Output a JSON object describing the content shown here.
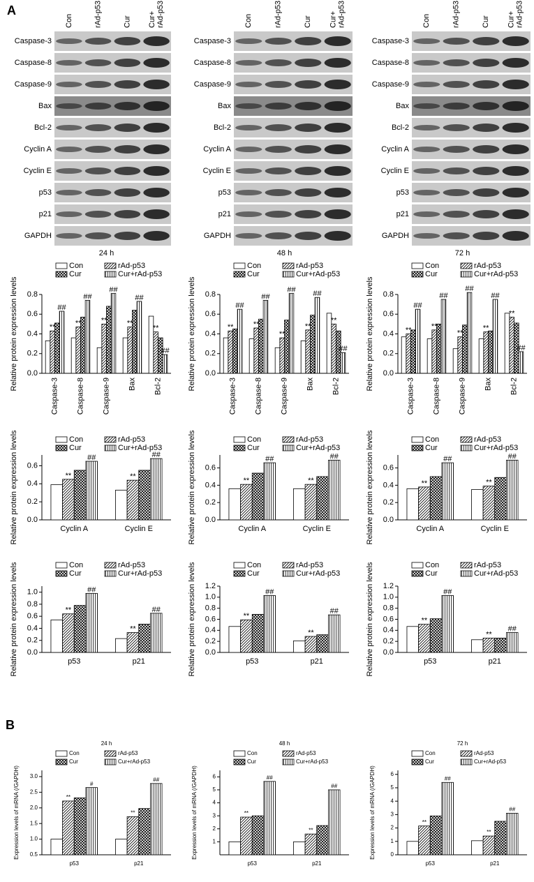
{
  "panel_labels": [
    "A",
    "B"
  ],
  "blots": [
    {
      "lanes": [
        [
          "Con"
        ],
        [
          "rAd-p53"
        ],
        [
          "Cur"
        ],
        [
          "Cur+",
          "rAd-p53"
        ]
      ],
      "proteins": [
        "Caspase-3",
        "Caspase-8",
        "Caspase-9",
        "Bax",
        "Bcl-2",
        "Cyclin A",
        "Cyclin E",
        "p53",
        "p21",
        "GAPDH"
      ]
    },
    {
      "lanes": [
        [
          "Con"
        ],
        [
          "rAd-p53"
        ],
        [
          "Cur"
        ],
        [
          "Cur+",
          "rAd-p53"
        ]
      ],
      "proteins": [
        "Caspase-3",
        "Caspase-8",
        "Caspase-9",
        "Bax",
        "Bcl-2",
        "Cyclin A",
        "Cyclin E",
        "p53",
        "p21",
        "GAPDH"
      ]
    },
    {
      "lanes": [
        [
          "Con"
        ],
        [
          "rAd-p53"
        ],
        [
          "Cur"
        ],
        [
          "Cur+",
          "rAd-p53"
        ]
      ],
      "proteins": [
        "Caspase-3",
        "Caspase-8",
        "Caspase-9",
        "Bax",
        "Bcl-2",
        "Cyclin A",
        "Cyclin E",
        "p53",
        "p21",
        "GAPDH"
      ]
    }
  ],
  "chart_data": [
    {
      "type": "bar",
      "title": "24 h",
      "y_label": "Relative protein expression levels",
      "categories": [
        "Caspase-3",
        "Caspase-8",
        "Caspase-9",
        "Bax",
        "Bcl-2"
      ],
      "ylim": [
        0,
        0.8
      ],
      "yticks": [
        {
          "value": 0,
          "label": "0.0"
        },
        0.2,
        0.4,
        0.6,
        0.8
      ],
      "series": [
        {
          "name": "Con",
          "pattern": "none",
          "values": [
            0.33,
            0.36,
            0.26,
            0.36,
            0.58
          ]
        },
        {
          "name": "rAd-p53",
          "pattern": "diagonal",
          "values": [
            0.43,
            0.47,
            0.5,
            0.47,
            0.42
          ],
          "annotations": [
            "**",
            "**",
            "**",
            "**",
            "**"
          ]
        },
        {
          "name": "Cur",
          "pattern": "cross",
          "values": [
            0.51,
            0.57,
            0.68,
            0.64,
            0.36
          ]
        },
        {
          "name": "Cur+rAd-p53",
          "pattern": "vertical",
          "values": [
            0.63,
            0.74,
            0.81,
            0.73,
            0.19
          ],
          "annotations": [
            "##",
            "##",
            "##",
            "##",
            "##"
          ]
        }
      ]
    },
    {
      "type": "bar",
      "title": "48 h",
      "y_label": "Relative protein expression levels",
      "categories": [
        "Caspase-3",
        "Caspase-8",
        "Caspase-9",
        "Bax",
        "Bcl-2"
      ],
      "ylim": [
        0,
        0.8
      ],
      "yticks": [
        {
          "value": 0,
          "label": "0.0"
        },
        0.2,
        0.4,
        0.6,
        0.8
      ],
      "series": [
        {
          "name": "Con",
          "pattern": "none",
          "values": [
            0.36,
            0.35,
            0.26,
            0.33,
            0.61
          ]
        },
        {
          "name": "rAd-p53",
          "pattern": "diagonal",
          "values": [
            0.43,
            0.46,
            0.36,
            0.44,
            0.5
          ],
          "annotations": [
            "**",
            "**",
            "**",
            "**",
            "**"
          ]
        },
        {
          "name": "Cur",
          "pattern": "cross",
          "values": [
            0.45,
            0.55,
            0.54,
            0.59,
            0.43
          ]
        },
        {
          "name": "Cur+rAd-p53",
          "pattern": "vertical",
          "values": [
            0.65,
            0.74,
            0.81,
            0.77,
            0.21
          ],
          "annotations": [
            "##",
            "##",
            "##",
            "##",
            "##"
          ]
        }
      ]
    },
    {
      "type": "bar",
      "title": "72 h",
      "y_label": "Relative protein expression levels",
      "categories": [
        "Caspase-3",
        "Caspase-8",
        "Caspase-9",
        "Bax",
        "Bcl-2"
      ],
      "ylim": [
        0,
        0.8
      ],
      "yticks": [
        {
          "value": 0,
          "label": "0.0"
        },
        0.2,
        0.4,
        0.6,
        0.8
      ],
      "series": [
        {
          "name": "Con",
          "pattern": "none",
          "values": [
            0.37,
            0.35,
            0.25,
            0.35,
            0.61
          ]
        },
        {
          "name": "rAd-p53",
          "pattern": "diagonal",
          "values": [
            0.4,
            0.44,
            0.37,
            0.42,
            0.57
          ],
          "annotations": [
            "**",
            "**",
            "**",
            "**",
            "**"
          ]
        },
        {
          "name": "Cur",
          "pattern": "cross",
          "values": [
            0.44,
            0.5,
            0.49,
            0.43,
            0.51
          ]
        },
        {
          "name": "Cur+rAd-p53",
          "pattern": "vertical",
          "values": [
            0.65,
            0.75,
            0.82,
            0.75,
            0.22
          ],
          "annotations": [
            "##",
            "##",
            "##",
            "##",
            "##"
          ]
        }
      ]
    },
    {
      "type": "bar",
      "y_label": "Relative protein expression levels",
      "categories": [
        "Cyclin A",
        "Cyclin E"
      ],
      "ylim": [
        0,
        0.72
      ],
      "yticks": [
        {
          "value": 0,
          "label": "0.0"
        },
        0.2,
        0.4,
        0.6
      ],
      "series": [
        {
          "name": "Con",
          "pattern": "none",
          "values": [
            0.39,
            0.33
          ]
        },
        {
          "name": "rAd-p53",
          "pattern": "diagonal",
          "values": [
            0.45,
            0.44
          ],
          "annotations": [
            "**",
            "**"
          ]
        },
        {
          "name": "Cur",
          "pattern": "cross",
          "values": [
            0.55,
            0.55
          ]
        },
        {
          "name": "Cur+rAd-p53",
          "pattern": "vertical",
          "values": [
            0.65,
            0.68
          ],
          "annotations": [
            "##",
            "##"
          ]
        }
      ]
    },
    {
      "type": "bar",
      "y_label": "Relative protein expression levels",
      "categories": [
        "Cyclin A",
        "Cyclin E"
      ],
      "ylim": [
        0,
        0.75
      ],
      "yticks": [
        {
          "value": 0,
          "label": "0.0"
        },
        0.2,
        0.4,
        0.6
      ],
      "series": [
        {
          "name": "Con",
          "pattern": "none",
          "values": [
            0.36,
            0.36
          ]
        },
        {
          "name": "rAd-p53",
          "pattern": "diagonal",
          "values": [
            0.41,
            0.41
          ],
          "annotations": [
            "**",
            "**"
          ]
        },
        {
          "name": "Cur",
          "pattern": "cross",
          "values": [
            0.54,
            0.5
          ]
        },
        {
          "name": "Cur+rAd-p53",
          "pattern": "vertical",
          "values": [
            0.66,
            0.69
          ],
          "annotations": [
            "##",
            "##"
          ]
        }
      ]
    },
    {
      "type": "bar",
      "y_label": "Relative protein expression levels",
      "categories": [
        "Cyclin A",
        "Cyclin E"
      ],
      "ylim": [
        0,
        0.75
      ],
      "yticks": [
        {
          "value": 0,
          "label": "0.0"
        },
        0.2,
        0.4,
        0.6
      ],
      "series": [
        {
          "name": "Con",
          "pattern": "none",
          "values": [
            0.36,
            0.35
          ]
        },
        {
          "name": "rAd-p53",
          "pattern": "diagonal",
          "values": [
            0.38,
            0.39
          ],
          "annotations": [
            "**",
            "**"
          ]
        },
        {
          "name": "Cur",
          "pattern": "cross",
          "values": [
            0.5,
            0.49
          ]
        },
        {
          "name": "Cur+rAd-p53",
          "pattern": "vertical",
          "values": [
            0.66,
            0.69
          ],
          "annotations": [
            "##",
            "##"
          ]
        }
      ]
    },
    {
      "type": "bar",
      "y_label": "Relative protein expression levels",
      "categories": [
        "p53",
        "p21"
      ],
      "ylim": [
        0,
        1.1
      ],
      "yticks": [
        {
          "value": 0,
          "label": "0.0"
        },
        0.2,
        0.4,
        0.6,
        0.8,
        {
          "value": 1,
          "label": "1.0"
        }
      ],
      "series": [
        {
          "name": "Con",
          "pattern": "none",
          "values": [
            0.54,
            0.23
          ]
        },
        {
          "name": "rAd-p53",
          "pattern": "diagonal",
          "values": [
            0.64,
            0.33
          ],
          "annotations": [
            "**",
            "**"
          ]
        },
        {
          "name": "Cur",
          "pattern": "cross",
          "values": [
            0.78,
            0.47
          ]
        },
        {
          "name": "Cur+rAd-p53",
          "pattern": "vertical",
          "values": [
            0.98,
            0.65
          ],
          "annotations": [
            "##",
            "##"
          ]
        }
      ]
    },
    {
      "type": "bar",
      "y_label": "Relative protein expression levels",
      "categories": [
        "p53",
        "p21"
      ],
      "ylim": [
        0,
        1.2
      ],
      "yticks": [
        {
          "value": 0,
          "label": "0.0"
        },
        0.2,
        0.4,
        0.6,
        0.8,
        {
          "value": 1,
          "label": "1.0"
        },
        1.2
      ],
      "series": [
        {
          "name": "Con",
          "pattern": "none",
          "values": [
            0.47,
            0.21
          ]
        },
        {
          "name": "rAd-p53",
          "pattern": "diagonal",
          "values": [
            0.59,
            0.29
          ],
          "annotations": [
            "**",
            "**"
          ]
        },
        {
          "name": "Cur",
          "pattern": "cross",
          "values": [
            0.69,
            0.32
          ]
        },
        {
          "name": "Cur+rAd-p53",
          "pattern": "vertical",
          "values": [
            1.03,
            0.68
          ],
          "annotations": [
            "##",
            "##"
          ]
        }
      ]
    },
    {
      "type": "bar",
      "y_label": "Relative protein expression levels",
      "categories": [
        "p53",
        "p21"
      ],
      "ylim": [
        0,
        1.2
      ],
      "yticks": [
        {
          "value": 0,
          "label": "0.0"
        },
        0.2,
        0.4,
        0.6,
        0.8,
        {
          "value": 1,
          "label": "1.0"
        },
        1.2
      ],
      "series": [
        {
          "name": "Con",
          "pattern": "none",
          "values": [
            0.47,
            0.23
          ]
        },
        {
          "name": "rAd-p53",
          "pattern": "diagonal",
          "values": [
            0.51,
            0.26
          ],
          "annotations": [
            "**",
            "**"
          ]
        },
        {
          "name": "Cur",
          "pattern": "cross",
          "values": [
            0.61,
            0.26
          ]
        },
        {
          "name": "Cur+rAd-p53",
          "pattern": "vertical",
          "values": [
            1.03,
            0.36
          ],
          "annotations": [
            "##",
            "##"
          ]
        }
      ]
    },
    {
      "type": "bar",
      "title": "24 h",
      "y_label": "Expression levels of mRNA (/GAPDH)",
      "categories": [
        "p53",
        "p21"
      ],
      "ylim": [
        0.5,
        3.2
      ],
      "yticks": [
        0.5,
        {
          "value": 1,
          "label": "1.0"
        },
        1.5,
        {
          "value": 2,
          "label": "2.0"
        },
        2.5,
        {
          "value": 3,
          "label": "3.0"
        }
      ],
      "series": [
        {
          "name": "Con",
          "pattern": "none",
          "values": [
            1.0,
            1.0
          ]
        },
        {
          "name": "rAd-p53",
          "pattern": "diagonal",
          "values": [
            2.22,
            1.72
          ],
          "annotations": [
            "**",
            "**"
          ]
        },
        {
          "name": "Cur",
          "pattern": "cross",
          "values": [
            2.32,
            1.98
          ]
        },
        {
          "name": "Cur+rAd-p53",
          "pattern": "vertical",
          "values": [
            2.65,
            2.78
          ],
          "annotations": [
            "#",
            "##"
          ]
        }
      ]
    },
    {
      "type": "bar",
      "title": "48 h",
      "y_label": "Expression levels of mRNA (/GAPDH)",
      "categories": [
        "p53",
        "p21"
      ],
      "ylim": [
        0,
        6.5
      ],
      "yticks": [
        1,
        2,
        3,
        4,
        5,
        6
      ],
      "series": [
        {
          "name": "Con",
          "pattern": "none",
          "values": [
            1.0,
            1.0
          ]
        },
        {
          "name": "rAd-p53",
          "pattern": "diagonal",
          "values": [
            2.9,
            1.6
          ],
          "annotations": [
            "**",
            "**"
          ]
        },
        {
          "name": "Cur",
          "pattern": "cross",
          "values": [
            3.0,
            2.25
          ]
        },
        {
          "name": "Cur+rAd-p53",
          "pattern": "vertical",
          "values": [
            5.65,
            5.0
          ],
          "annotations": [
            "##",
            "##"
          ]
        }
      ]
    },
    {
      "type": "bar",
      "title": "72 h",
      "y_label": "Expression levels of mRNA (/GAPDH)",
      "categories": [
        "p53",
        "p21"
      ],
      "ylim": [
        0,
        6.3
      ],
      "yticks": [
        0,
        1,
        2,
        3,
        4,
        5,
        6
      ],
      "series": [
        {
          "name": "Con",
          "pattern": "none",
          "values": [
            1.0,
            1.05
          ]
        },
        {
          "name": "rAd-p53",
          "pattern": "diagonal",
          "values": [
            2.15,
            1.4
          ],
          "annotations": [
            "**",
            "**"
          ]
        },
        {
          "name": "Cur",
          "pattern": "cross",
          "values": [
            2.9,
            2.5
          ]
        },
        {
          "name": "Cur+rAd-p53",
          "pattern": "vertical",
          "values": [
            5.4,
            3.1
          ],
          "annotations": [
            "##",
            "##"
          ]
        }
      ]
    }
  ]
}
